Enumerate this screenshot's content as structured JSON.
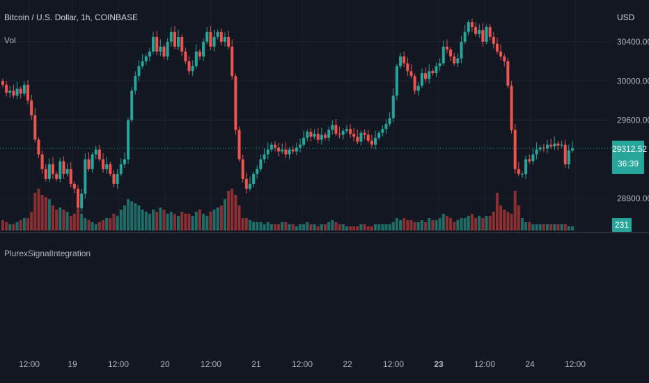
{
  "chart_title": "Bitcoin / U.S. Dollar, 1h, COINBASE",
  "volume_label": "Vol",
  "indicator_label": "PlurexSignalIntegration",
  "currency_label": "USD",
  "last_price_label": "29312.52",
  "countdown_label": "36:39",
  "last_volume_label": "231",
  "colors": {
    "background": "#131722",
    "up": "#26a69a",
    "down": "#ef5350",
    "up_vol": "#1f6d66",
    "down_vol": "#8b2f33",
    "grid": "#1e222d",
    "text": "#b2b5be"
  },
  "chart_data": {
    "type": "candlestick",
    "title": "Bitcoin / U.S. Dollar, 1h, COINBASE",
    "x_tick_labels": [
      "12:00",
      "19",
      "12:00",
      "20",
      "12:00",
      "21",
      "12:00",
      "22",
      "12:00",
      "23",
      "12:00",
      "24",
      "12:00"
    ],
    "y_tick_labels": [
      "30400.00",
      "30000.00",
      "29600.00",
      "28800.00"
    ],
    "ylim": [
      28700,
      30700
    ],
    "last_price": 29312.52,
    "last_volume": 231,
    "closes": [
      29960,
      29880,
      29900,
      29850,
      29920,
      29870,
      29960,
      29800,
      29650,
      29400,
      29250,
      29100,
      29000,
      29150,
      29050,
      29000,
      29180,
      29050,
      29100,
      28950,
      28900,
      28700,
      28850,
      29200,
      29100,
      29250,
      29300,
      29200,
      29100,
      29150,
      29050,
      28950,
      29050,
      29150,
      29200,
      29600,
      29900,
      30050,
      30150,
      30200,
      30250,
      30300,
      30450,
      30300,
      30350,
      30250,
      30400,
      30500,
      30350,
      30450,
      30300,
      30200,
      30100,
      30150,
      30300,
      30250,
      30400,
      30500,
      30350,
      30450,
      30500,
      30400,
      30450,
      30350,
      30050,
      29500,
      29200,
      29000,
      28900,
      28950,
      29050,
      29100,
      29200,
      29250,
      29300,
      29350,
      29320,
      29280,
      29300,
      29250,
      29300,
      29280,
      29320,
      29350,
      29420,
      29480,
      29430,
      29460,
      29400,
      29450,
      29420,
      29500,
      29550,
      29460,
      29450,
      29490,
      29510,
      29460,
      29430,
      29380,
      29470,
      29450,
      29390,
      29350,
      29420,
      29470,
      29510,
      29560,
      29620,
      29850,
      30150,
      30250,
      30180,
      30100,
      30050,
      29900,
      29950,
      30080,
      30020,
      30100,
      30080,
      30150,
      30180,
      30350,
      30320,
      30250,
      30180,
      30230,
      30400,
      30500,
      30600,
      30550,
      30480,
      30520,
      30400,
      30550,
      30450,
      30380,
      30300,
      30250,
      30200,
      29950,
      29500,
      29100,
      29050,
      29050,
      29200,
      29180,
      29250,
      29300,
      29320,
      29310,
      29350,
      29330,
      29360,
      29340,
      29350,
      29150,
      29290,
      29312.52
    ],
    "volumes": [
      0.25,
      0.2,
      0.15,
      0.15,
      0.2,
      0.25,
      0.3,
      0.3,
      0.45,
      0.9,
      1.0,
      0.85,
      0.8,
      0.75,
      0.6,
      0.5,
      0.55,
      0.5,
      0.45,
      0.35,
      0.4,
      0.55,
      0.4,
      0.3,
      0.25,
      0.2,
      0.15,
      0.2,
      0.25,
      0.3,
      0.3,
      0.4,
      0.35,
      0.5,
      0.6,
      0.75,
      0.7,
      0.65,
      0.6,
      0.5,
      0.45,
      0.4,
      0.5,
      0.45,
      0.55,
      0.5,
      0.4,
      0.45,
      0.4,
      0.35,
      0.45,
      0.4,
      0.4,
      0.35,
      0.45,
      0.5,
      0.4,
      0.35,
      0.45,
      0.5,
      0.55,
      0.6,
      0.75,
      0.95,
      1.0,
      0.85,
      0.6,
      0.3,
      0.3,
      0.25,
      0.2,
      0.2,
      0.2,
      0.15,
      0.2,
      0.15,
      0.15,
      0.15,
      0.2,
      0.2,
      0.15,
      0.15,
      0.1,
      0.15,
      0.15,
      0.2,
      0.15,
      0.15,
      0.1,
      0.15,
      0.15,
      0.2,
      0.25,
      0.2,
      0.15,
      0.15,
      0.1,
      0.1,
      0.1,
      0.1,
      0.15,
      0.15,
      0.1,
      0.1,
      0.15,
      0.15,
      0.15,
      0.15,
      0.15,
      0.2,
      0.3,
      0.25,
      0.3,
      0.25,
      0.25,
      0.2,
      0.2,
      0.25,
      0.2,
      0.3,
      0.25,
      0.25,
      0.3,
      0.4,
      0.35,
      0.3,
      0.2,
      0.25,
      0.3,
      0.3,
      0.35,
      0.4,
      0.3,
      0.35,
      0.3,
      0.35,
      0.35,
      0.45,
      0.9,
      0.6,
      0.5,
      0.45,
      0.4,
      0.95,
      0.6,
      0.3,
      0.2,
      0.2,
      0.15,
      0.15,
      0.15,
      0.15,
      0.15,
      0.15,
      0.15,
      0.15,
      0.15,
      0.15,
      0.1,
      0.1
    ]
  }
}
